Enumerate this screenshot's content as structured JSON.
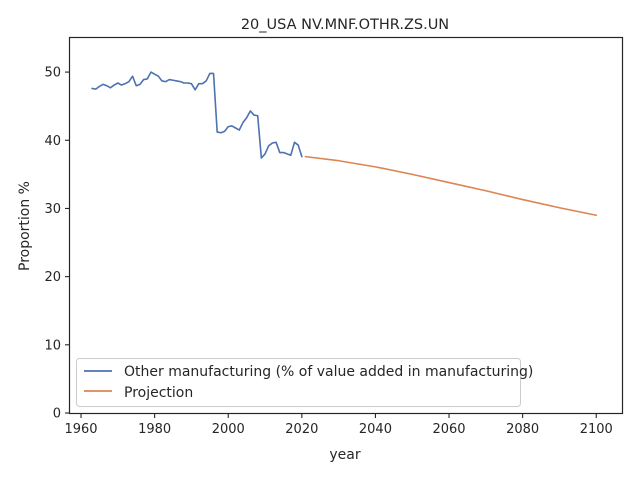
{
  "chart_data": {
    "type": "line",
    "title": "20_USA NV.MNF.OTHR.ZS.UN",
    "xlabel": "year",
    "ylabel": "Proportion %",
    "xlim": [
      1957,
      2107
    ],
    "ylim": [
      0,
      55
    ],
    "xticks": [
      1960,
      1980,
      2000,
      2020,
      2040,
      2060,
      2080,
      2100
    ],
    "yticks": [
      0,
      10,
      20,
      30,
      40,
      50
    ],
    "grid": false,
    "legend_position": "lower-left",
    "series": [
      {
        "name": "Other manufacturing (% of value added in manufacturing)",
        "color": "#4c72b0",
        "x": [
          1963,
          1964,
          1965,
          1966,
          1967,
          1968,
          1969,
          1970,
          1971,
          1972,
          1973,
          1974,
          1975,
          1976,
          1977,
          1978,
          1979,
          1980,
          1981,
          1982,
          1983,
          1984,
          1985,
          1986,
          1987,
          1988,
          1989,
          1990,
          1991,
          1992,
          1993,
          1994,
          1995,
          1996,
          1997,
          1998,
          1999,
          2000,
          2001,
          2002,
          2003,
          2004,
          2005,
          2006,
          2007,
          2008,
          2009,
          2010,
          2011,
          2012,
          2013,
          2014,
          2015,
          2016,
          2017,
          2018,
          2019,
          2020
        ],
        "y": [
          47.6,
          47.5,
          47.9,
          48.2,
          48.0,
          47.7,
          48.1,
          48.4,
          48.1,
          48.3,
          48.6,
          49.4,
          48.0,
          48.2,
          48.9,
          49.0,
          50.0,
          49.7,
          49.4,
          48.7,
          48.6,
          48.9,
          48.8,
          48.7,
          48.6,
          48.4,
          48.4,
          48.3,
          47.4,
          48.3,
          48.3,
          48.7,
          49.8,
          49.8,
          41.2,
          41.1,
          41.3,
          42.0,
          42.1,
          41.8,
          41.5,
          42.6,
          43.3,
          44.3,
          43.7,
          43.6,
          37.4,
          38.0,
          39.2,
          39.6,
          39.7,
          38.2,
          38.2,
          38.0,
          37.8,
          39.7,
          39.3,
          37.6
        ]
      },
      {
        "name": "Projection",
        "color": "#dd8452",
        "x": [
          2021,
          2030,
          2040,
          2050,
          2060,
          2070,
          2080,
          2090,
          2100
        ],
        "y": [
          37.6,
          37.0,
          36.1,
          35.0,
          33.8,
          32.6,
          31.3,
          30.1,
          29.0
        ]
      }
    ]
  }
}
